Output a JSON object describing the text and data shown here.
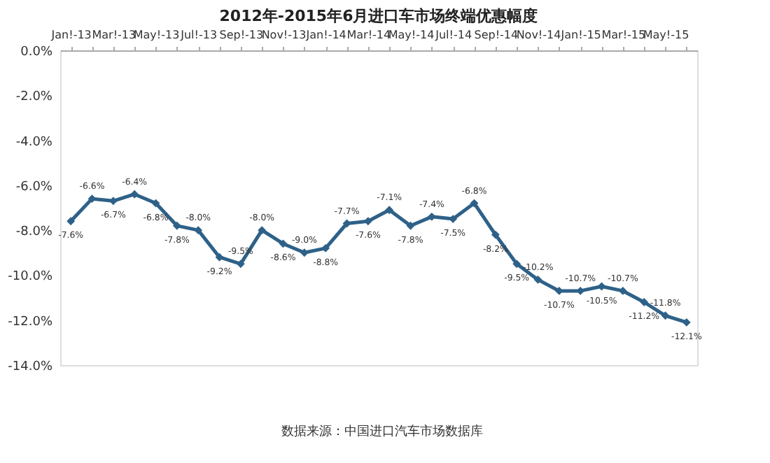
{
  "chart_data": {
    "type": "line",
    "title": "2012年-2015年6月进口车市场终端优惠幅度",
    "categories": [
      "Jan!-13",
      null,
      "Mar!-13",
      null,
      "May!-13",
      null,
      "Jul!-13",
      null,
      "Sep!-13",
      null,
      "Nov!-13",
      null,
      "Jan!-14",
      null,
      "Mar!-14",
      null,
      "May!-14",
      null,
      "Jul!-14",
      null,
      "Sep!-14",
      null,
      "Nov!-14",
      null,
      "Jan!-15",
      null,
      "Mar!-15",
      null,
      "May!-15",
      null
    ],
    "series": [
      {
        "color": "#2e6188",
        "values": [
          -7.6,
          -6.6,
          -6.7,
          -6.4,
          -6.8,
          -7.8,
          -8.0,
          -9.2,
          -9.5,
          -8.0,
          -8.6,
          -9.0,
          -8.8,
          -7.7,
          -7.6,
          -7.1,
          -7.8,
          -7.4,
          -7.5,
          -6.8,
          -8.2,
          -9.5,
          -10.2,
          -10.7,
          -10.7,
          -10.5,
          -10.7,
          -11.2,
          -11.8,
          -12.1
        ],
        "value_labels": [
          "-7.6%",
          "-6.6%",
          "-6.7%",
          "-6.4%",
          "-6.8%",
          "-7.8%",
          "-8.0%",
          "-9.2%",
          "-9.5%",
          "-8.0%",
          "-8.6%",
          "-9.0%",
          "-8.8%",
          "-7.7%",
          "-7.6%",
          "-7.1%",
          "-7.8%",
          "-7.4%",
          "-7.5%",
          "-6.8%",
          "-8.2%",
          "-9.5%",
          "-10.2%",
          "-10.7%",
          "-10.7%",
          "-10.5%",
          "-10.7%",
          "-11.2%",
          "-11.8%",
          "-12.1%"
        ]
      }
    ],
    "ylim": [
      -14,
      0
    ],
    "yticks": [
      {
        "value": 0,
        "label": "0.0%"
      },
      {
        "value": -2,
        "label": "-2.0%"
      },
      {
        "value": -4,
        "label": "-4.0%"
      },
      {
        "value": -6,
        "label": "-6.0%"
      },
      {
        "value": -8,
        "label": "-8.0%"
      },
      {
        "value": -10,
        "label": "-10.0%"
      },
      {
        "value": -12,
        "label": "-12.0%"
      },
      {
        "value": -14,
        "label": "-14.0%"
      }
    ],
    "marker": "diamond",
    "line_style": "solid",
    "grid": false,
    "annotations": [
      "数据来源：中国进口汽车市场数据库"
    ]
  }
}
